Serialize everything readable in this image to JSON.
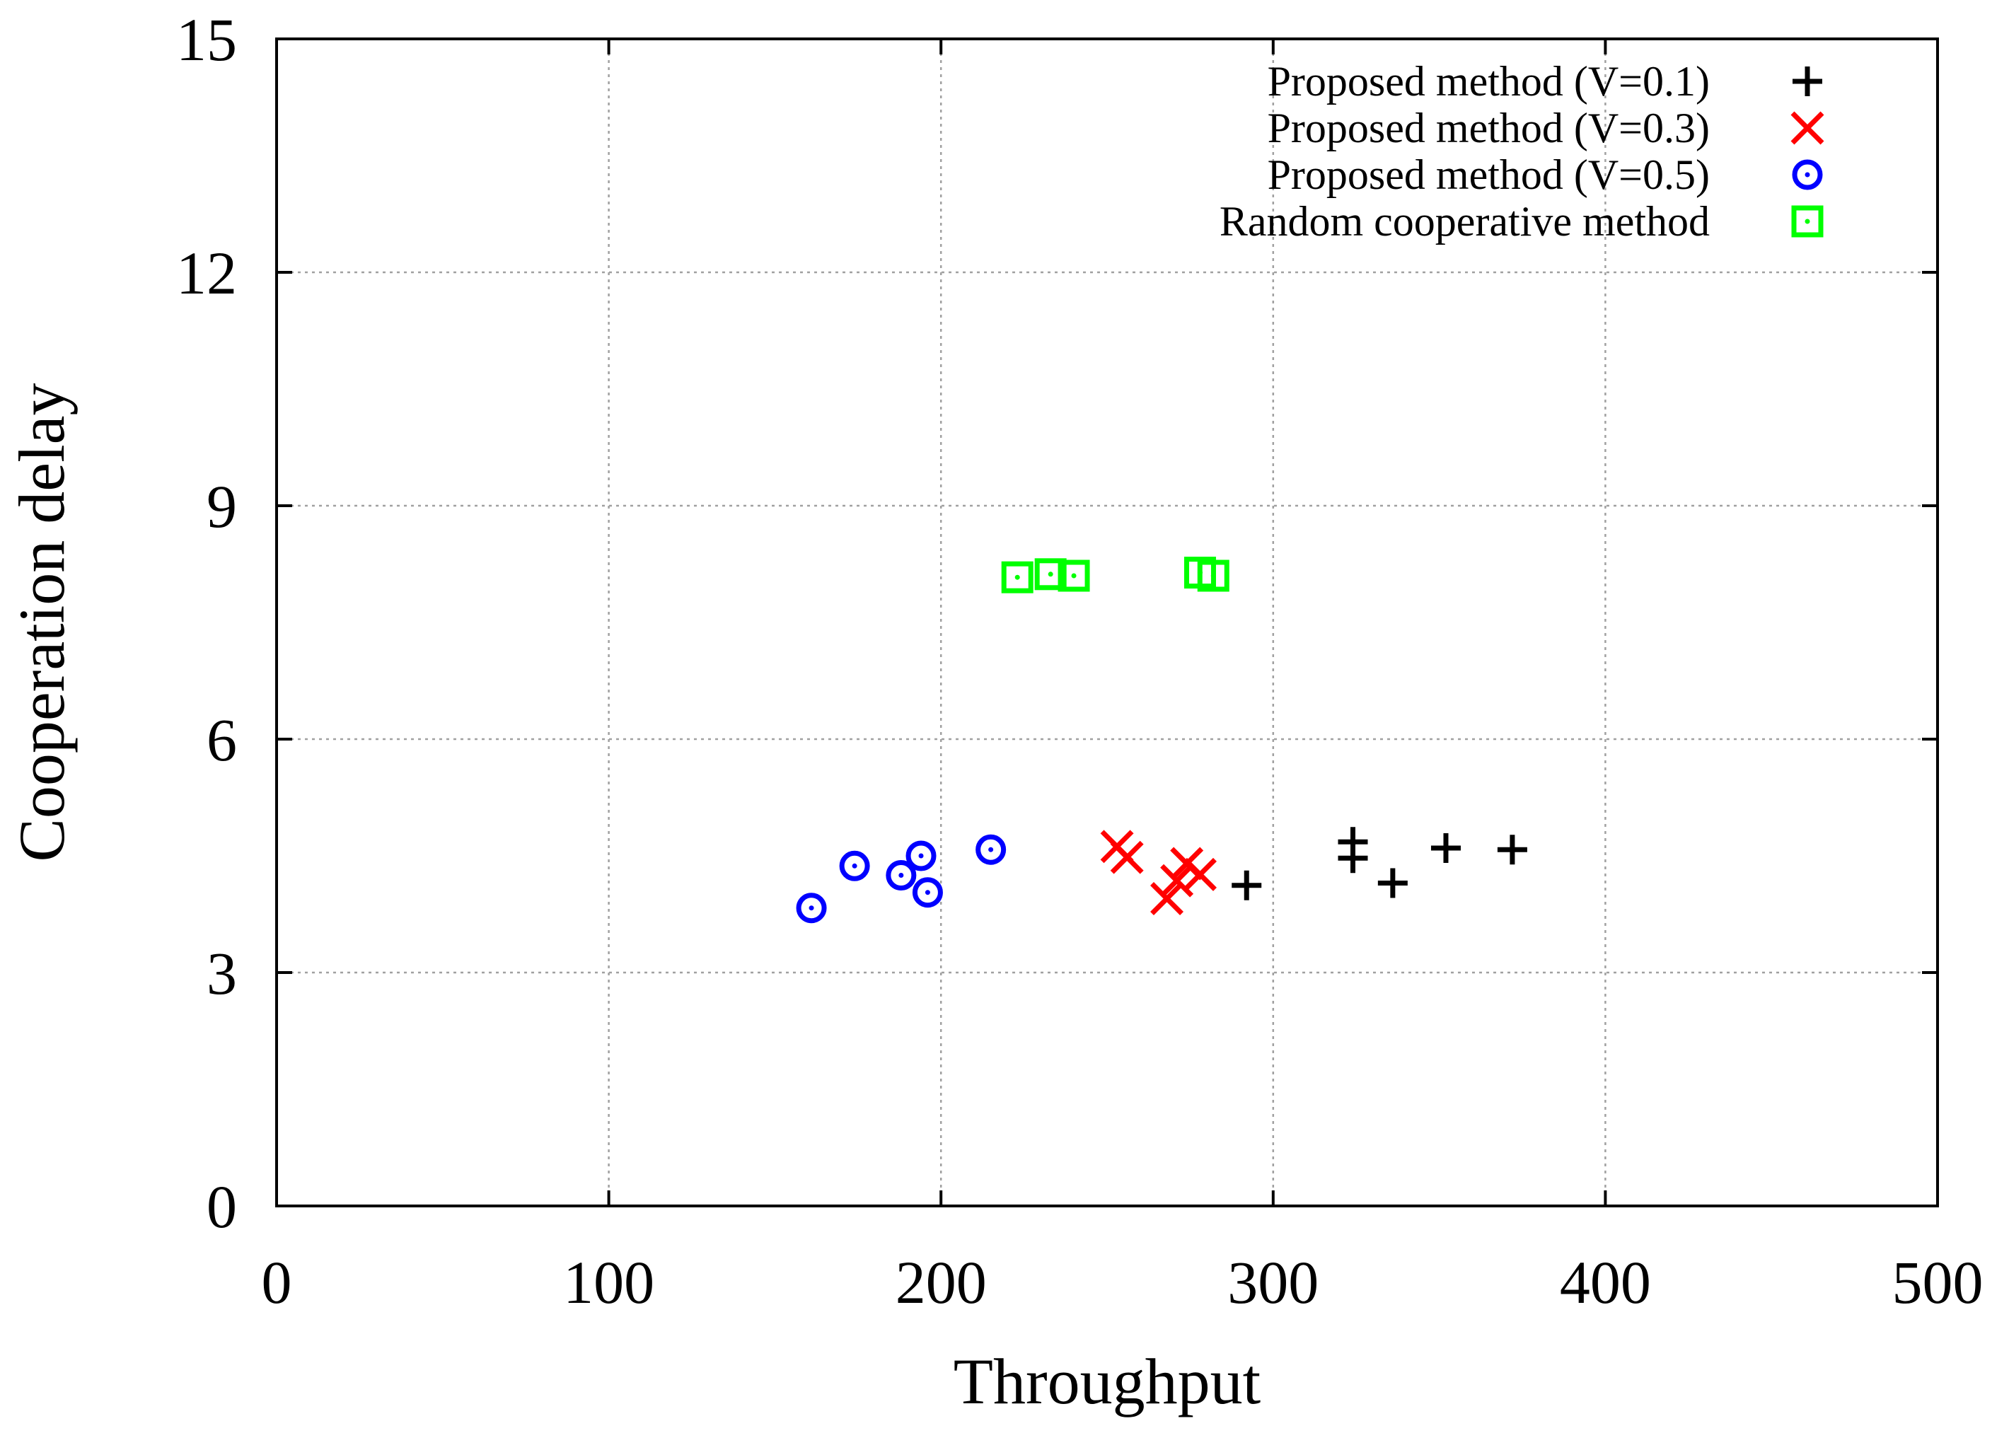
{
  "chart_data": {
    "type": "scatter",
    "title": "",
    "xlabel": "Throughput",
    "ylabel": "Cooperation delay",
    "xlim": [
      0,
      500
    ],
    "ylim": [
      0,
      15
    ],
    "x_ticks": [
      "0",
      "100",
      "200",
      "300",
      "400",
      "500"
    ],
    "y_ticks": [
      "0",
      "3",
      "6",
      "9",
      "12",
      "15"
    ],
    "grid": true,
    "legend_position": "top-right",
    "series": [
      {
        "name": "Proposed method (V=0.1)",
        "marker": "plus",
        "color": "#000000",
        "points": [
          {
            "x": 292,
            "y": 4.12
          },
          {
            "x": 324,
            "y": 4.68
          },
          {
            "x": 324,
            "y": 4.47
          },
          {
            "x": 336,
            "y": 4.15
          },
          {
            "x": 352,
            "y": 4.6
          },
          {
            "x": 372,
            "y": 4.58
          }
        ]
      },
      {
        "name": "Proposed method (V=0.3)",
        "marker": "cross",
        "color": "#ff0000",
        "points": [
          {
            "x": 253,
            "y": 4.62
          },
          {
            "x": 256,
            "y": 4.48
          },
          {
            "x": 268,
            "y": 3.95
          },
          {
            "x": 271,
            "y": 4.18
          },
          {
            "x": 274,
            "y": 4.4
          },
          {
            "x": 278,
            "y": 4.26
          }
        ]
      },
      {
        "name": "Proposed method (V=0.5)",
        "marker": "circled-dot",
        "color": "#0000ff",
        "points": [
          {
            "x": 161,
            "y": 3.83
          },
          {
            "x": 174,
            "y": 4.37
          },
          {
            "x": 188,
            "y": 4.25
          },
          {
            "x": 194,
            "y": 4.5
          },
          {
            "x": 196,
            "y": 4.03
          },
          {
            "x": 215,
            "y": 4.58
          }
        ]
      },
      {
        "name": "Random cooperative method",
        "marker": "boxed-dot",
        "color": "#00ff00",
        "points": [
          {
            "x": 223,
            "y": 8.08
          },
          {
            "x": 233,
            "y": 8.12
          },
          {
            "x": 240,
            "y": 8.1
          },
          {
            "x": 278,
            "y": 8.14
          },
          {
            "x": 282,
            "y": 8.1
          }
        ]
      }
    ]
  }
}
